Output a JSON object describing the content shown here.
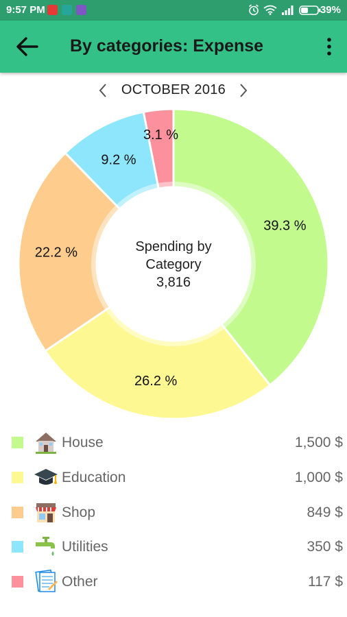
{
  "status_bar": {
    "time": "9:57 PM",
    "battery": "39%"
  },
  "app_bar": {
    "title": "By categories: Expense",
    "back_icon": "arrow-left-icon",
    "menu_icon": "more-vertical-icon"
  },
  "period": {
    "label": "OCTOBER 2016"
  },
  "chart_data": {
    "type": "pie",
    "center_text": [
      "Spending by",
      "Category",
      "3,816"
    ],
    "slices": [
      {
        "label": "39.3 %",
        "value": 39.3,
        "color": "#c2fa8e",
        "category": "House"
      },
      {
        "label": "26.2 %",
        "value": 26.2,
        "color": "#fef892",
        "category": "Education"
      },
      {
        "label": "22.2 %",
        "value": 22.2,
        "color": "#fecd8e",
        "category": "Shop"
      },
      {
        "label": "9.2 %",
        "value": 9.2,
        "color": "#8de6fc",
        "category": "Utilities"
      },
      {
        "label": "3.1 %",
        "value": 3.1,
        "color": "#fc909c",
        "category": "Other"
      }
    ]
  },
  "legend": [
    {
      "name": "House",
      "amount": "1,500 $",
      "color": "#c2fa8e",
      "icon": "house-icon"
    },
    {
      "name": "Education",
      "amount": "1,000 $",
      "color": "#fef892",
      "icon": "graduation-cap-icon"
    },
    {
      "name": "Shop",
      "amount": "849 $",
      "color": "#fecd8e",
      "icon": "shop-icon"
    },
    {
      "name": "Utilities",
      "amount": "350 $",
      "color": "#8de6fc",
      "icon": "faucet-icon"
    },
    {
      "name": "Other",
      "amount": "117 $",
      "color": "#fc909c",
      "icon": "document-icon"
    }
  ]
}
